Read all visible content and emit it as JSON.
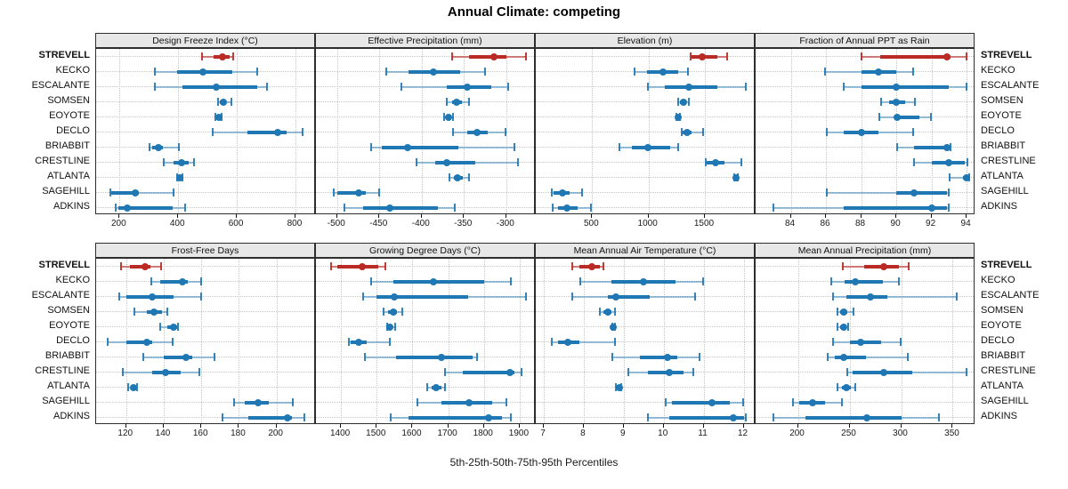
{
  "title": "Annual Climate: competing",
  "caption": "5th-25th-50th-75th-95th Percentiles",
  "percentile_labels": [
    "5th",
    "25th",
    "50th",
    "75th",
    "95th"
  ],
  "stations": [
    "STREVELL",
    "KECKO",
    "ESCALANTE",
    "SOMSEN",
    "EOYOTE",
    "DECLO",
    "BRIABBIT",
    "CRESTLINE",
    "ATLANTA",
    "SAGEHILL",
    "ADKINS"
  ],
  "highlight_station": "STREVELL",
  "colors": {
    "highlight": "#B92B24",
    "normal": "#1F77B4",
    "panel_header_bg": "#E7E7E7",
    "panel_border": "#2E2E2E",
    "grid": "#C6C6C6"
  },
  "chart_data": [
    {
      "type": "scatter",
      "subtype": "percentile-interval",
      "title": "Design Freeze Index (°C)",
      "xlim": [
        120,
        870
      ],
      "ticks": [
        200,
        400,
        600,
        800
      ],
      "values": [
        [
          479,
          521,
          552,
          575,
          589
        ],
        [
          320,
          395,
          485,
          585,
          670
        ],
        [
          320,
          415,
          530,
          670,
          705
        ],
        [
          535,
          541,
          555,
          563,
          582
        ],
        [
          524,
          529,
          538,
          543,
          549
        ],
        [
          515,
          635,
          740,
          770,
          825
        ],
        [
          300,
          312,
          333,
          348,
          405
        ],
        [
          350,
          385,
          412,
          435,
          455
        ],
        [
          396,
          401,
          406,
          411,
          416
        ],
        [
          166,
          172,
          255,
          266,
          387
        ],
        [
          185,
          197,
          227,
          380,
          425
        ]
      ]
    },
    {
      "type": "scatter",
      "subtype": "percentile-interval",
      "title": "Effective Precipitation (mm)",
      "xlim": [
        -525,
        -265
      ],
      "ticks": [
        -500,
        -450,
        -400,
        -350,
        -300
      ],
      "values": [
        [
          -365,
          -344,
          -314,
          -300,
          -276
        ],
        [
          -442,
          -416,
          -386,
          -354,
          -325
        ],
        [
          -424,
          -370,
          -346,
          -318,
          -297
        ],
        [
          -371,
          -364,
          -359,
          -352,
          -343
        ],
        [
          -374,
          -371,
          -368,
          -365,
          -362
        ],
        [
          -363,
          -346,
          -334,
          -322,
          -300
        ],
        [
          -460,
          -447,
          -417,
          -357,
          -290
        ],
        [
          -407,
          -384,
          -370,
          -337,
          -286
        ],
        [
          -368,
          -362,
          -358,
          -351,
          -343
        ],
        [
          -504,
          -500,
          -474,
          -466,
          -450
        ],
        [
          -492,
          -469,
          -438,
          -381,
          -360
        ]
      ]
    },
    {
      "type": "scatter",
      "subtype": "percentile-interval",
      "title": "Elevation (m)",
      "xlim": [
        0,
        1950
      ],
      "ticks": [
        500,
        1000,
        1500
      ],
      "values": [
        [
          1370,
          1385,
          1475,
          1610,
          1698
        ],
        [
          869,
          987,
          1132,
          1264,
          1356
        ],
        [
          987,
          1145,
          1356,
          1613,
          1867
        ],
        [
          1256,
          1277,
          1309,
          1335,
          1361
        ],
        [
          1245,
          1255,
          1264,
          1272,
          1282
        ],
        [
          1290,
          1303,
          1343,
          1384,
          1487
        ],
        [
          737,
          856,
          995,
          1190,
          1264
        ],
        [
          1500,
          1519,
          1593,
          1677,
          1830
        ],
        [
          1758,
          1768,
          1777,
          1786,
          1798
        ],
        [
          140,
          158,
          237,
          297,
          413
        ],
        [
          145,
          198,
          277,
          374,
          497
        ]
      ]
    },
    {
      "type": "scatter",
      "subtype": "percentile-interval",
      "title": "Fraction of Annual PPT as Rain",
      "xlim": [
        82,
        94.5
      ],
      "ticks": [
        84,
        86,
        88,
        90,
        92,
        94
      ],
      "values": [
        [
          88,
          89.1,
          92.9,
          93.1,
          94
        ],
        [
          85.9,
          88,
          89,
          90,
          91
        ],
        [
          87,
          88,
          90,
          93,
          94
        ],
        [
          89.1,
          89.6,
          90,
          90.5,
          91.1
        ],
        [
          89,
          89.9,
          90.05,
          91.3,
          92
        ],
        [
          86,
          87,
          88,
          89,
          91
        ],
        [
          90,
          91,
          92.9,
          93,
          93.1
        ],
        [
          91,
          92,
          93,
          93.9,
          94.05
        ],
        [
          93,
          93.8,
          93.98,
          94.05,
          94.15
        ],
        [
          86,
          90,
          91,
          92.9,
          93
        ],
        [
          83,
          87,
          92,
          92.9,
          93
        ]
      ]
    },
    {
      "type": "scatter",
      "subtype": "percentile-interval",
      "title": "Frost-Free Days",
      "xlim": [
        104,
        221
      ],
      "ticks": [
        120,
        140,
        160,
        180,
        200
      ],
      "values": [
        [
          117,
          122,
          130,
          133,
          139
        ],
        [
          133,
          138,
          150,
          153,
          160
        ],
        [
          116,
          120,
          134,
          145,
          160
        ],
        [
          124,
          131,
          135,
          139,
          142
        ],
        [
          138,
          142,
          145,
          147,
          148
        ],
        [
          110,
          120,
          131,
          134,
          145
        ],
        [
          129,
          140,
          152,
          155,
          167
        ],
        [
          118,
          134,
          141,
          149,
          159
        ],
        [
          121,
          122.5,
          123.7,
          124.5,
          126
        ],
        [
          177,
          183,
          190,
          196,
          209
        ],
        [
          171,
          185,
          206,
          208,
          215
        ]
      ]
    },
    {
      "type": "scatter",
      "subtype": "percentile-interval",
      "title": "Growing Degree Days (°C)",
      "xlim": [
        1330,
        1945
      ],
      "ticks": [
        1400,
        1500,
        1600,
        1700,
        1800,
        1900
      ],
      "values": [
        [
          1370,
          1390,
          1460,
          1505,
          1525
        ],
        [
          1483,
          1546,
          1658,
          1800,
          1877
        ],
        [
          1460,
          1500,
          1548,
          1755,
          1920
        ],
        [
          1517,
          1531,
          1546,
          1557,
          1572
        ],
        [
          1527,
          1532,
          1536,
          1545,
          1553
        ],
        [
          1420,
          1427,
          1450,
          1473,
          1537
        ],
        [
          1465,
          1555,
          1680,
          1767,
          1783
        ],
        [
          1690,
          1742,
          1872,
          1885,
          1906
        ],
        [
          1640,
          1653,
          1665,
          1680,
          1693
        ],
        [
          1612,
          1680,
          1758,
          1823,
          1864
        ],
        [
          1537,
          1590,
          1812,
          1850,
          1877
        ]
      ]
    },
    {
      "type": "scatter",
      "subtype": "percentile-interval",
      "title": "Mean Annual Air Temperature (°C)",
      "xlim": [
        6.8,
        12.3
      ],
      "ticks": [
        7,
        8,
        9,
        10,
        11,
        12
      ],
      "values": [
        [
          7.7,
          7.9,
          8.2,
          8.4,
          8.5
        ],
        [
          7.9,
          8.7,
          9.5,
          10.3,
          11.0
        ],
        [
          7.7,
          8.6,
          8.8,
          9.65,
          10.8
        ],
        [
          8.4,
          8.5,
          8.6,
          8.7,
          8.8
        ],
        [
          8.7,
          8.72,
          8.74,
          8.77,
          8.8
        ],
        [
          7.2,
          7.35,
          7.6,
          7.9,
          8.8
        ],
        [
          8.7,
          9.4,
          10.1,
          10.35,
          10.9
        ],
        [
          9.1,
          9.6,
          10.15,
          10.5,
          10.75
        ],
        [
          8.8,
          8.85,
          8.9,
          8.92,
          8.95
        ],
        [
          10.05,
          10.2,
          11.2,
          11.65,
          12.0
        ],
        [
          9.6,
          10.15,
          11.75,
          12.0,
          12.07
        ]
      ]
    },
    {
      "type": "scatter",
      "subtype": "percentile-interval",
      "title": "Mean Annual Precipitation (mm)",
      "xlim": [
        159,
        372
      ],
      "ticks": [
        200,
        250,
        300,
        350
      ],
      "values": [
        [
          243,
          264,
          283,
          298,
          308
        ],
        [
          232,
          245,
          256,
          282,
          298
        ],
        [
          234,
          247,
          270,
          287,
          354
        ],
        [
          238,
          241,
          244,
          248,
          254
        ],
        [
          238,
          241,
          244,
          246,
          249
        ],
        [
          234,
          250,
          261,
          281,
          300
        ],
        [
          228,
          236,
          244,
          266,
          307
        ],
        [
          247,
          253,
          283,
          311,
          364
        ],
        [
          238,
          243,
          247,
          251,
          256
        ],
        [
          195,
          201,
          214,
          226,
          243
        ],
        [
          176,
          207,
          267,
          300,
          337
        ]
      ]
    }
  ]
}
